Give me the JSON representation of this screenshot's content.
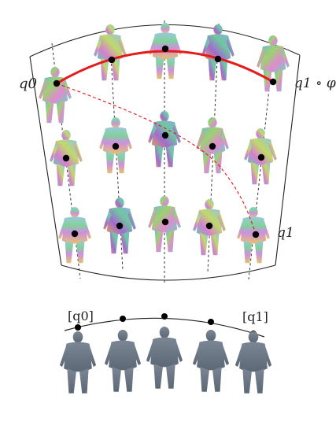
{
  "labels": {
    "q0": "q0",
    "q1_phi": "q1 ∘ φ",
    "q1": "q1",
    "bottom_q0": "[q0]",
    "bottom_q1": "[q1]"
  },
  "grid": {
    "columns": 5,
    "rows": 3,
    "curve_color": "#e00000",
    "point_color": "#000000"
  },
  "colors": {
    "shape_gray": "#6f7a86",
    "geodesic_red": "#e41a1c"
  },
  "bottom_row": {
    "count": 5
  }
}
